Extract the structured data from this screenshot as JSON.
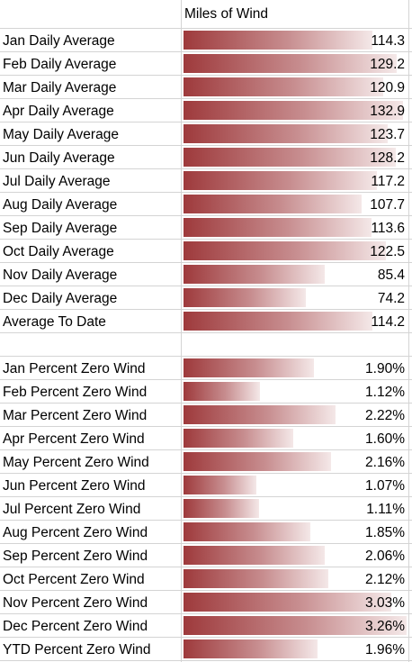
{
  "header": {
    "column_title": "Miles of Wind"
  },
  "chart_data": [
    {
      "type": "table",
      "value_format": "decimal",
      "xlim": [
        0,
        135
      ],
      "rows": [
        {
          "label": "Jan Daily Average",
          "value": 114.3,
          "display": "114.3"
        },
        {
          "label": "Feb Daily Average",
          "value": 129.2,
          "display": "129.2"
        },
        {
          "label": "Mar Daily Average",
          "value": 120.9,
          "display": "120.9"
        },
        {
          "label": "Apr Daily Average",
          "value": 132.9,
          "display": "132.9"
        },
        {
          "label": "May Daily Average",
          "value": 123.7,
          "display": "123.7"
        },
        {
          "label": "Jun Daily Average",
          "value": 128.2,
          "display": "128.2"
        },
        {
          "label": "Jul Daily Average",
          "value": 117.2,
          "display": "117.2"
        },
        {
          "label": "Aug Daily Average",
          "value": 107.7,
          "display": "107.7"
        },
        {
          "label": "Sep Daily Average",
          "value": 113.6,
          "display": "113.6"
        },
        {
          "label": "Oct Daily Average",
          "value": 122.5,
          "display": "122.5"
        },
        {
          "label": "Nov Daily Average",
          "value": 85.4,
          "display": "85.4"
        },
        {
          "label": "Dec Daily Average",
          "value": 74.2,
          "display": "74.2"
        },
        {
          "label": "Average To Date",
          "value": 114.2,
          "display": "114.2"
        }
      ]
    },
    {
      "type": "table",
      "value_format": "percent",
      "xlim": [
        0,
        3.26
      ],
      "rows": [
        {
          "label": "Jan Percent Zero Wind",
          "value": 1.9,
          "display": "1.90%"
        },
        {
          "label": "Feb Percent Zero Wind",
          "value": 1.12,
          "display": "1.12%"
        },
        {
          "label": "Mar Percent Zero Wind",
          "value": 2.22,
          "display": "2.22%"
        },
        {
          "label": "Apr Percent Zero Wind",
          "value": 1.6,
          "display": "1.60%"
        },
        {
          "label": "May Percent Zero Wind",
          "value": 2.16,
          "display": "2.16%"
        },
        {
          "label": "Jun Percent Zero Wind",
          "value": 1.07,
          "display": "1.07%"
        },
        {
          "label": "Jul Percent Zero Wind",
          "value": 1.11,
          "display": "1.11%"
        },
        {
          "label": "Aug Percent Zero Wind",
          "value": 1.85,
          "display": "1.85%"
        },
        {
          "label": "Sep Percent Zero Wind",
          "value": 2.06,
          "display": "2.06%"
        },
        {
          "label": "Oct Percent Zero Wind",
          "value": 2.12,
          "display": "2.12%"
        },
        {
          "label": "Nov Percent Zero Wind",
          "value": 3.03,
          "display": "3.03%"
        },
        {
          "label": "Dec Percent Zero Wind",
          "value": 3.26,
          "display": "3.26%"
        },
        {
          "label": "YTD Percent Zero Wind",
          "value": 1.96,
          "display": "1.96%"
        }
      ]
    }
  ],
  "colors": {
    "bar_dark": "#9e3a3c",
    "bar_light": "#f4e8e8",
    "gridline": "#d4d4d4"
  }
}
